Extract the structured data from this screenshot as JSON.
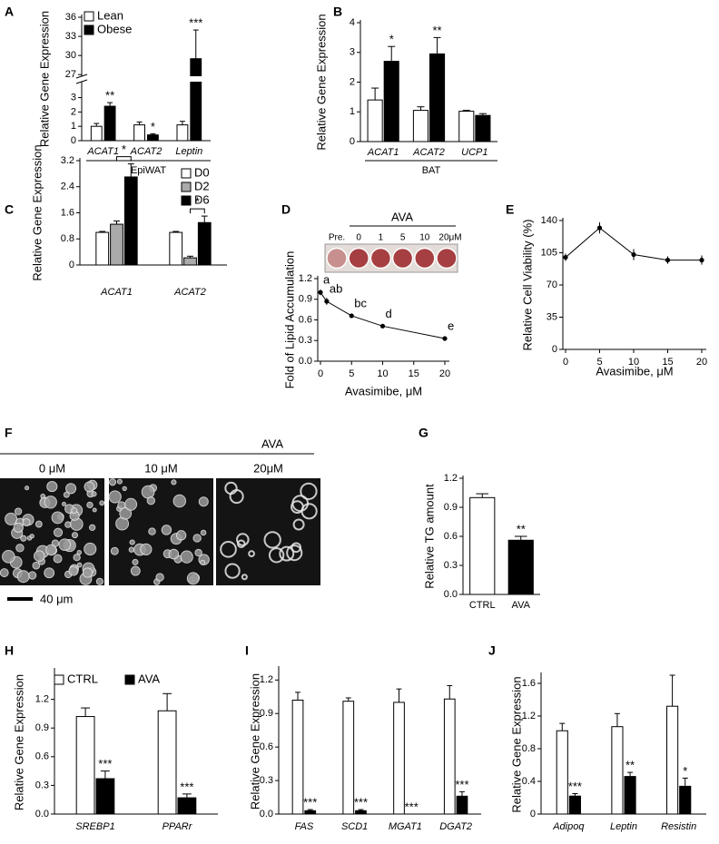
{
  "chart_data": [
    {
      "panel": "A",
      "type": "bar",
      "ylabel": "Relative  Gene Expression",
      "categories": [
        "ACAT1",
        "ACAT2",
        "Leptin"
      ],
      "group_label": "EpiWAT",
      "series": [
        {
          "name": "Lean",
          "color": "#ffffff",
          "values": [
            1.0,
            1.1,
            1.1
          ],
          "errors": [
            0.2,
            0.2,
            0.25
          ]
        },
        {
          "name": "Obese",
          "color": "#000000",
          "values": [
            2.4,
            0.4,
            29.5
          ],
          "errors": [
            0.25,
            0.08,
            4.5
          ],
          "significance": [
            "**",
            "*",
            "***"
          ]
        }
      ],
      "ylim": [
        0,
        36
      ],
      "ybreak": [
        4,
        27
      ],
      "yticks": [
        0,
        1,
        2,
        3,
        27,
        30,
        33,
        36
      ],
      "legend": "top-left"
    },
    {
      "panel": "B",
      "type": "bar",
      "ylabel": "Relative  Gene Expression",
      "categories": [
        "ACAT1",
        "ACAT2",
        "UCP1"
      ],
      "group_label": "BAT",
      "series": [
        {
          "color": "#ffffff",
          "values": [
            1.4,
            1.05,
            1.02
          ],
          "errors": [
            0.4,
            0.12,
            0.03
          ]
        },
        {
          "color": "#000000",
          "values": [
            2.7,
            2.95,
            0.88
          ],
          "errors": [
            0.5,
            0.55,
            0.06
          ],
          "significance": [
            "*",
            "**",
            null
          ]
        }
      ],
      "ylim": [
        0,
        4
      ],
      "yticks": [
        0,
        1,
        2,
        3,
        4
      ]
    },
    {
      "panel": "C",
      "type": "bar",
      "ylabel": "Relative  Gene Expression",
      "categories": [
        "ACAT1",
        "ACAT2"
      ],
      "bracket": true,
      "series": [
        {
          "name": "D0",
          "color": "#ffffff",
          "values": [
            1.0,
            1.0
          ],
          "errors": [
            0.03,
            0.03
          ]
        },
        {
          "name": "D2",
          "color": "#aaaaaa",
          "values": [
            1.25,
            0.22
          ],
          "errors": [
            0.1,
            0.05
          ]
        },
        {
          "name": "D6",
          "color": "#000000",
          "values": [
            2.7,
            1.3
          ],
          "errors": [
            0.4,
            0.2
          ],
          "significance": [
            "*",
            "*"
          ]
        }
      ],
      "ylim": [
        0,
        3.2
      ],
      "yticks": [
        0,
        0.8,
        1.6,
        2.4,
        3.2
      ],
      "legend": "right"
    },
    {
      "panel": "D",
      "type": "line",
      "ylabel": "Fold of Lipid Accumulation",
      "xlabel": "Avasimibe, μM",
      "color": "#000000",
      "x": [
        0,
        1,
        5,
        10,
        20
      ],
      "values": [
        1.0,
        0.87,
        0.66,
        0.51,
        0.33
      ],
      "errors": [
        0.04,
        0.05,
        0.03,
        0.01,
        0.03
      ],
      "point_labels": [
        "a",
        "ab",
        "bc",
        "d",
        "e"
      ],
      "xlim": [
        0,
        20
      ],
      "xticks": [
        0,
        5,
        10,
        15,
        20
      ],
      "ylim": [
        0,
        1.2
      ],
      "yticks": [
        {
          "value": 0,
          "label": "0.0"
        },
        0.3,
        0.6,
        0.9,
        1.2
      ],
      "inset": {
        "title": "AVA",
        "labels": [
          "Pre.",
          "0",
          "1",
          "5",
          "10",
          "20μM"
        ]
      }
    },
    {
      "panel": "E",
      "type": "line",
      "ylabel": "Relative  Cell Viability (%)",
      "xlabel": "Avasimibe, μM",
      "color": "#000000",
      "x": [
        0,
        5,
        10,
        15,
        20
      ],
      "values": [
        100,
        132,
        103,
        97,
        97
      ],
      "errors": [
        4,
        6,
        6,
        4,
        5
      ],
      "xlim": [
        0,
        20
      ],
      "xticks": [
        0,
        5,
        10,
        15,
        20
      ],
      "ylim": [
        0,
        140
      ],
      "yticks": [
        0,
        35,
        70,
        105,
        140
      ]
    },
    {
      "panel": "F",
      "type": "image",
      "title": "AVA",
      "labels": [
        "0 μM",
        "10 μM",
        "20μM"
      ],
      "scale_bar": "40 μm"
    },
    {
      "panel": "G",
      "type": "bar",
      "ylabel": "Relative  TG amount",
      "categories": [
        "CTRL",
        "AVA"
      ],
      "series": [
        {
          "colors": [
            "#ffffff",
            "#000000"
          ],
          "values": [
            1.0,
            0.56
          ],
          "errors": [
            0.04,
            0.04
          ],
          "significance": [
            null,
            "**"
          ]
        }
      ],
      "ylim": [
        0,
        1.2
      ],
      "yticks": [
        {
          "value": 0,
          "label": "0.0"
        },
        0.3,
        0.6,
        0.9,
        1.2
      ]
    },
    {
      "panel": "H",
      "type": "bar",
      "ylabel": "Relative  Gene Expression",
      "categories": [
        "SREBP1",
        "PPARr"
      ],
      "series": [
        {
          "name": "CTRL",
          "color": "#ffffff",
          "values": [
            1.02,
            1.08
          ],
          "errors": [
            0.09,
            0.18
          ]
        },
        {
          "name": "AVA",
          "color": "#000000",
          "values": [
            0.37,
            0.17
          ],
          "errors": [
            0.08,
            0.04
          ],
          "significance": [
            "***",
            "***"
          ]
        }
      ],
      "ylim": [
        0,
        1.5
      ],
      "yticks": [
        {
          "value": 0,
          "label": "0.0"
        },
        0.3,
        0.6,
        0.9,
        1.2
      ],
      "legend": "top"
    },
    {
      "panel": "I",
      "type": "bar",
      "ylabel": "Relative  Gene Expression",
      "categories": [
        "FAS",
        "SCD1",
        "MGAT1",
        "DGAT2"
      ],
      "series": [
        {
          "color": "#ffffff",
          "values": [
            1.02,
            1.01,
            1.0,
            1.03
          ],
          "errors": [
            0.07,
            0.03,
            0.12,
            0.12
          ]
        },
        {
          "color": "#000000",
          "values": [
            0.03,
            0.03,
            0,
            0.16
          ],
          "errors": [
            0.01,
            0.01,
            0,
            0.04
          ],
          "significance": [
            "***",
            "***",
            "***",
            "***"
          ]
        }
      ],
      "ylim": [
        0,
        1.3
      ],
      "yticks": [
        {
          "value": 0,
          "label": "0.0"
        },
        0.3,
        0.6,
        0.9,
        1.2
      ]
    },
    {
      "panel": "J",
      "type": "bar",
      "ylabel": "Relative  Gene Expression",
      "categories": [
        "Adipoq",
        "Leptin",
        "Resistin"
      ],
      "series": [
        {
          "color": "#ffffff",
          "values": [
            1.02,
            1.07,
            1.32
          ],
          "errors": [
            0.09,
            0.16,
            0.38
          ]
        },
        {
          "color": "#000000",
          "values": [
            0.22,
            0.46,
            0.34
          ],
          "errors": [
            0.03,
            0.05,
            0.1
          ],
          "significance": [
            "***",
            "**",
            "*"
          ]
        }
      ],
      "ylim": [
        0,
        1.7
      ],
      "yticks": [
        0,
        0.4,
        0.8,
        1.2,
        1.6
      ]
    }
  ]
}
